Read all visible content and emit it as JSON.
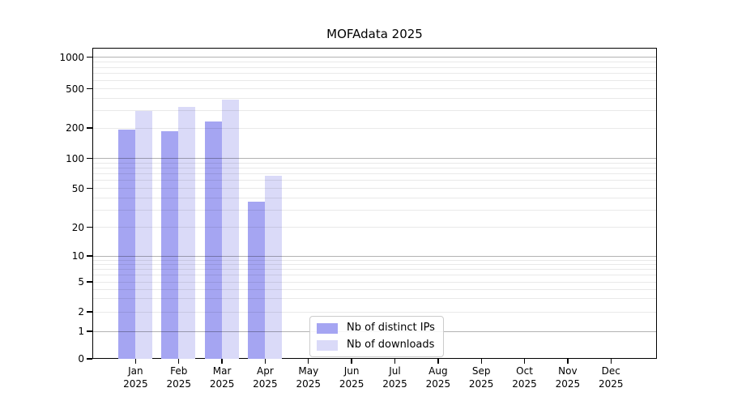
{
  "title": "MOFAdata 2025",
  "chart_data": {
    "type": "bar",
    "title": "MOFAdata 2025",
    "yscale": "symlog",
    "grid": "horizontal, log major+minor",
    "legend_position": "bottom-center inside plot",
    "categories": [
      "Jan 2025",
      "Feb 2025",
      "Mar 2025",
      "Apr 2025",
      "May 2025",
      "Jun 2025",
      "Jul 2025",
      "Aug 2025",
      "Sep 2025",
      "Oct 2025",
      "Nov 2025",
      "Dec 2025"
    ],
    "yticks": [
      0,
      1,
      2,
      5,
      10,
      20,
      50,
      100,
      200,
      500,
      1000
    ],
    "ylim": [
      0,
      1200
    ],
    "series": [
      {
        "name": "Nb of distinct IPs",
        "color": "#a5a5f2",
        "values": [
          191,
          184,
          230,
          36,
          0,
          0,
          0,
          0,
          0,
          0,
          0,
          0
        ]
      },
      {
        "name": "Nb of downloads",
        "color": "#dadaf8",
        "values": [
          295,
          324,
          384,
          66,
          0,
          0,
          0,
          0,
          0,
          0,
          0,
          0
        ]
      }
    ]
  }
}
